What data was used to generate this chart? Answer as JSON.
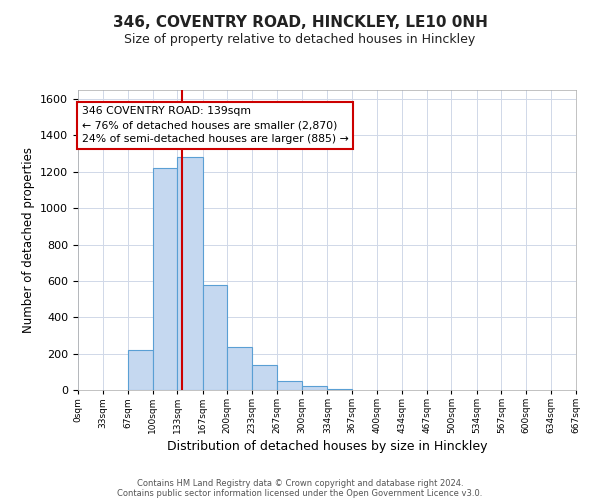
{
  "title": "346, COVENTRY ROAD, HINCKLEY, LE10 0NH",
  "subtitle": "Size of property relative to detached houses in Hinckley",
  "xlabel": "Distribution of detached houses by size in Hinckley",
  "ylabel": "Number of detached properties",
  "bar_edges": [
    0,
    33,
    67,
    100,
    133,
    167,
    200,
    233,
    267,
    300,
    334,
    367,
    400,
    434,
    467,
    500,
    534,
    567,
    600,
    634,
    667
  ],
  "bar_heights": [
    0,
    0,
    222,
    1222,
    1283,
    580,
    235,
    138,
    50,
    22,
    8,
    0,
    0,
    0,
    0,
    0,
    0,
    0,
    0,
    0
  ],
  "bar_color": "#c5d8f0",
  "bar_edge_color": "#5a9fd4",
  "vline_x": 139,
  "vline_color": "#cc0000",
  "ylim": [
    0,
    1650
  ],
  "yticks": [
    0,
    200,
    400,
    600,
    800,
    1000,
    1200,
    1400,
    1600
  ],
  "xtick_labels": [
    "0sqm",
    "33sqm",
    "67sqm",
    "100sqm",
    "133sqm",
    "167sqm",
    "200sqm",
    "233sqm",
    "267sqm",
    "300sqm",
    "334sqm",
    "367sqm",
    "400sqm",
    "434sqm",
    "467sqm",
    "500sqm",
    "534sqm",
    "567sqm",
    "600sqm",
    "634sqm",
    "667sqm"
  ],
  "annotation_title": "346 COVENTRY ROAD: 139sqm",
  "annotation_line1": "← 76% of detached houses are smaller (2,870)",
  "annotation_line2": "24% of semi-detached houses are larger (885) →",
  "footer1": "Contains HM Land Registry data © Crown copyright and database right 2024.",
  "footer2": "Contains public sector information licensed under the Open Government Licence v3.0.",
  "bg_color": "#ffffff",
  "grid_color": "#d0d8e8"
}
